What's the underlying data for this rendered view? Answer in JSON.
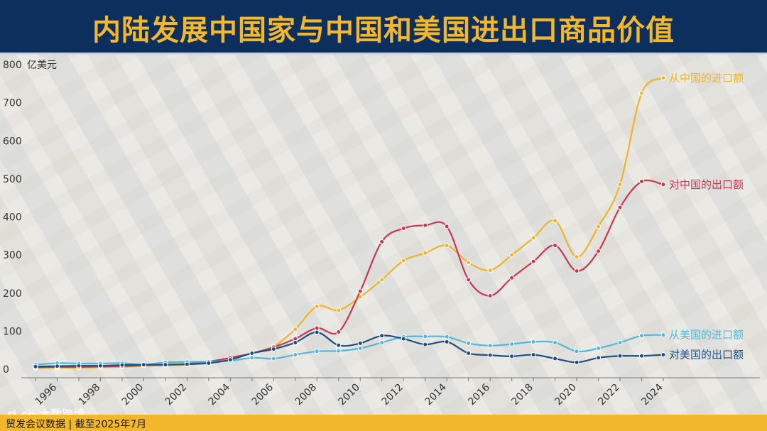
{
  "title": "内陆发展中国家与中国和美国进出口商品价值",
  "source": "贸发会议数据 | 截至2025年7月",
  "watermark": "大数跨境",
  "chart_data": {
    "type": "line",
    "unit": "亿美元",
    "ylim": [
      0,
      800
    ],
    "yticks": [
      0,
      100,
      200,
      300,
      400,
      500,
      600,
      700,
      800
    ],
    "x": [
      1995,
      1996,
      1997,
      1998,
      1999,
      2000,
      2001,
      2002,
      2003,
      2004,
      2005,
      2006,
      2007,
      2008,
      2009,
      2010,
      2011,
      2012,
      2013,
      2014,
      2015,
      2016,
      2017,
      2018,
      2019,
      2020,
      2021,
      2022,
      2023,
      2024
    ],
    "xticks": [
      1996,
      1998,
      2000,
      2002,
      2004,
      2006,
      2008,
      2010,
      2012,
      2014,
      2016,
      2018,
      2020,
      2022,
      2024
    ],
    "grid": false,
    "series": [
      {
        "name": "从中国的进口额",
        "color": "#f0b429",
        "values": [
          3,
          4,
          4,
          5,
          6,
          9,
          10,
          12,
          18,
          30,
          42,
          60,
          105,
          165,
          155,
          190,
          235,
          285,
          305,
          325,
          280,
          260,
          300,
          345,
          390,
          295,
          375,
          485,
          725,
          765
        ]
      },
      {
        "name": "对中国的出口额",
        "color": "#c9374e",
        "values": [
          5,
          6,
          6,
          7,
          8,
          10,
          12,
          14,
          20,
          30,
          42,
          58,
          80,
          108,
          98,
          205,
          335,
          370,
          378,
          375,
          235,
          193,
          240,
          283,
          325,
          258,
          310,
          425,
          493,
          485
        ]
      },
      {
        "name": "从美国的进口额",
        "color": "#4fb8dc",
        "values": [
          12,
          16,
          15,
          15,
          16,
          12,
          18,
          19,
          20,
          22,
          30,
          28,
          38,
          47,
          48,
          55,
          70,
          85,
          86,
          85,
          68,
          62,
          66,
          72,
          70,
          47,
          55,
          70,
          88,
          90
        ]
      },
      {
        "name": "对美国的出口额",
        "color": "#1d4f82",
        "values": [
          7,
          8,
          9,
          9,
          11,
          12,
          12,
          13,
          16,
          25,
          42,
          53,
          70,
          97,
          63,
          68,
          88,
          80,
          65,
          72,
          42,
          37,
          34,
          38,
          28,
          18,
          30,
          35,
          35,
          38
        ]
      }
    ]
  }
}
